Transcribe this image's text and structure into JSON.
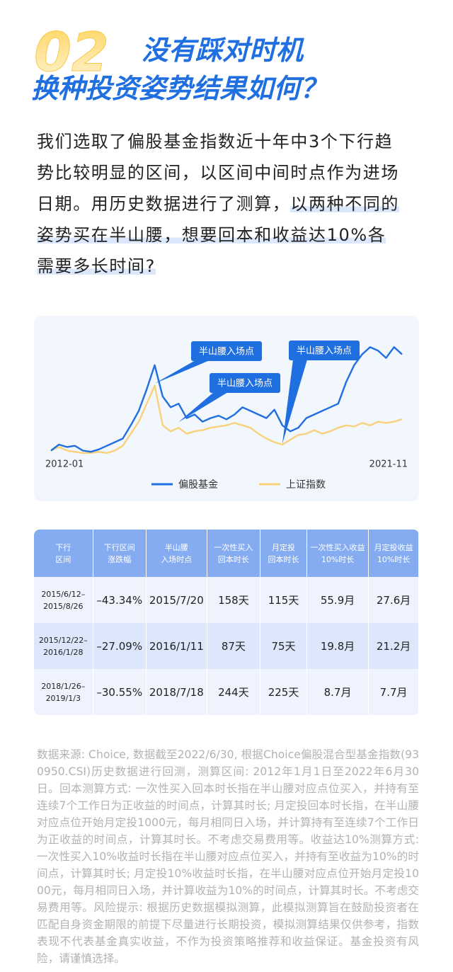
{
  "header": {
    "number": "02",
    "title_lines": [
      "没有踩对时机",
      "换种投资姿势结果如何？"
    ]
  },
  "paragraph": {
    "lines": [
      [
        {
          "text": "我们选取了偏股基金指数近十年中3个下行趋",
          "highlight": false
        }
      ],
      [
        {
          "text": "势比较明显的区间，以区间中间时点作为进场",
          "highlight": false
        }
      ],
      [
        {
          "text": "日期。用历史数据进行了测算，",
          "highlight": false
        },
        {
          "text": "以两种不同的",
          "highlight": true
        }
      ],
      [
        {
          "text": "姿势买在半山腰，想要回本和收益达10%各",
          "highlight": true
        }
      ],
      [
        {
          "text": "需要多长时间?",
          "highlight": true
        }
      ]
    ]
  },
  "chart_data": {
    "type": "line",
    "categories": [
      "2012-01",
      null,
      null,
      null,
      null,
      null,
      null,
      null,
      null,
      null,
      null,
      null,
      null,
      null,
      null,
      null,
      null,
      null,
      null,
      null,
      null,
      null,
      null,
      null,
      null,
      null,
      null,
      null,
      null,
      null,
      null,
      null,
      null,
      null,
      null,
      null,
      null,
      null,
      null,
      null,
      null,
      null,
      null,
      null,
      "2021-11"
    ],
    "series": [
      {
        "name": "偏股基金",
        "color": "#1f6fe0",
        "values": [
          5,
          10,
          8,
          9,
          5,
          4,
          6,
          9,
          12,
          15,
          26,
          38,
          56,
          76,
          50,
          41,
          44,
          32,
          35,
          29,
          32,
          34,
          31,
          35,
          41,
          38,
          35,
          32,
          39,
          26,
          21,
          24,
          32,
          35,
          38,
          41,
          44,
          62,
          76,
          85,
          91,
          88,
          82,
          91,
          85
        ]
      },
      {
        "name": "上证指数",
        "color": "#f8d27a",
        "values": [
          5,
          8,
          5,
          4,
          3,
          3,
          4,
          3,
          5,
          9,
          19,
          29,
          44,
          59,
          26,
          21,
          24,
          19,
          21,
          22,
          24,
          25,
          26,
          28,
          26,
          24,
          19,
          15,
          12,
          10,
          14,
          18,
          19,
          22,
          19,
          21,
          24,
          26,
          25,
          28,
          26,
          29,
          28,
          29,
          31
        ]
      }
    ],
    "ylim": [
      0,
      100
    ],
    "annotations": [
      "半山腰入场点",
      "半山腰入场点",
      "半山腰入场点"
    ],
    "legend": "bottom"
  },
  "table": {
    "header": [
      "下行\n区间",
      "下行区间\n涨跌幅",
      "半山腰\n入场时点",
      "一次性买入\n回本时长",
      "月定投\n回本时长",
      "一次性买入收益\n10%时长",
      "月定投收益\n10%时长"
    ],
    "rows": [
      [
        "2015/6/12–\n2015/8/26",
        "–43.34%",
        "2015/7/20",
        "158天",
        "115天",
        "55.9月",
        "27.6月"
      ],
      [
        "2015/12/22–\n2016/1/28",
        "–27.09%",
        "2016/1/11",
        "87天",
        "75天",
        "19.8月",
        "21.2月"
      ],
      [
        "2018/1/26–\n2019/1/3",
        "–30.55%",
        "2018/7/18",
        "244天",
        "225天",
        "8.7月",
        "7.7月"
      ]
    ]
  },
  "footnote": "数据来源: Choice, 数据截至2022/6/30, 根据Choice偏股混合型基金指数(930950.CSI)历史数据进行回测，测算区间: 2012年1月1日至2022年6月30日。回本测算方式: 一次性买入回本时长指在半山腰对应点位买入，并持有至连续7个工作日为正收益的时间点，计算其时长; 月定投回本时长指，在半山腰对应点位开始月定投1000元，每月相同日入场，并计算持有至连续7个工作日为正收益的时间点，计算其时长。不考虑交易费用等。收益达10%测算方式: 一次性买入10%收益时长指在半山腰对应点位买入，并持有至收益为10%的时间点，计算其时长; 月定投10%收益时长指，在半山腰对应点位开始月定投1000元，每月相同日入场，并计算收益为10%的时间点，计算其时长。不考虑交易费用等。风险提示: 根据历史数据模拟测算，此模拟测算旨在鼓励投资者在匹配自身资金期限的前提下尽量进行长期投资，模拟测算结果仅供参考，指数表现不代表基金真实收益，不作为投资策略推荐和收益保证。基金投资有风险，请谨慎选择。"
}
